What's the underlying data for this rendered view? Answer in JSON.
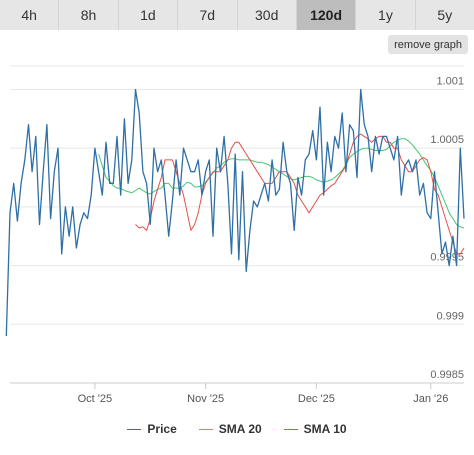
{
  "tabs": [
    {
      "label": "4h",
      "active": false
    },
    {
      "label": "8h",
      "active": false
    },
    {
      "label": "1d",
      "active": false
    },
    {
      "label": "7d",
      "active": false
    },
    {
      "label": "30d",
      "active": false
    },
    {
      "label": "120d",
      "active": true
    },
    {
      "label": "1y",
      "active": false
    },
    {
      "label": "5y",
      "active": false
    }
  ],
  "remove_graph_label": "remove graph",
  "chart_data": {
    "type": "line",
    "title": "",
    "xlabel": "",
    "ylabel": "",
    "x_range": [
      0,
      123
    ],
    "ylim": [
      0.9985,
      1.0012
    ],
    "y_ticks": [
      0.9985,
      0.999,
      0.9995,
      1.0,
      1.0005,
      1.001
    ],
    "y_tick_labels": [
      "0.9985",
      "0.999",
      "0.9995",
      "",
      "1.0005",
      "1.001"
    ],
    "x_ticks": [
      {
        "label": "Oct '25",
        "x": 23
      },
      {
        "label": "Nov '25",
        "x": 53
      },
      {
        "label": "Dec '25",
        "x": 83
      },
      {
        "label": "Jan '26",
        "x": 114
      }
    ],
    "grid": true,
    "legend": "bottom",
    "series": [
      {
        "name": "Price",
        "color": "#2f6fa6",
        "values": [
          0.9989,
          0.99995,
          1.0002,
          0.99988,
          1.0002,
          1.0004,
          1.0007,
          1.0003,
          1.0006,
          0.99985,
          1.0003,
          1.0007,
          0.9999,
          1.0003,
          1.0005,
          0.9996,
          1.0,
          0.99975,
          1.0,
          0.99965,
          0.99985,
          0.99995,
          0.9999,
          1.0001,
          1.0005,
          1.0003,
          1.0001,
          1.00055,
          1.0002,
          1.0002,
          1.0006,
          1.0001,
          1.00075,
          1.0002,
          1.0004,
          1.001,
          1.0008,
          1.0003,
          1.0002,
          0.99985,
          1.0005,
          1.0003,
          1.0004,
          1.0001,
          0.99975,
          1.00005,
          1.0004,
          1.0001,
          1.0005,
          1.0004,
          1.0003,
          1.0003,
          1.0004,
          1.0001,
          1.0003,
          1.0004,
          0.99975,
          1.0005,
          1.0003,
          1.0006,
          1.0002,
          0.9996,
          1.00045,
          0.99955,
          1.0003,
          0.99945,
          0.9998,
          1.00005,
          1.0,
          1.0001,
          1.0002,
          1.00005,
          1.0004,
          1.0001,
          1.00015,
          1.00055,
          1.0003,
          1.0002,
          0.9998,
          1.00025,
          1.0001,
          1.0004,
          1.00045,
          1.00065,
          1.0004,
          1.00085,
          1.0001,
          1.00055,
          1.0003,
          1.0006,
          1.0005,
          1.0008,
          1.0003,
          1.0007,
          1.00065,
          1.00025,
          1.001,
          1.0007,
          1.0006,
          1.0003,
          1.0006,
          1.00045,
          1.0006,
          1.0006,
          1.0005,
          1.0004,
          1.0006,
          1.0001,
          1.00035,
          1.0004,
          1.0003,
          1.0004,
          1.0001,
          1.0002,
          0.99995,
          0.9999,
          1.0003,
          0.99995,
          0.9996,
          0.9997,
          0.9995,
          0.99975,
          0.9995,
          1.0005,
          0.9999
        ]
      },
      {
        "name": "SMA 20",
        "color": "#42c774",
        "values": [
          1.00045,
          1.00035,
          1.00025,
          1.00022,
          1.00018,
          1.00016,
          1.00016,
          1.00014,
          1.00013,
          1.00012,
          1.00014,
          1.00016,
          1.00014,
          1.00012,
          1.00011,
          1.00013,
          1.00015,
          1.00016,
          1.0002,
          1.0002,
          1.00016,
          1.00016,
          1.00016,
          1.00018,
          1.00021,
          1.0002,
          1.00017,
          1.00017,
          1.00018,
          1.00021,
          1.00025,
          1.00029,
          1.00033,
          1.00035,
          1.00038,
          1.0004,
          1.00041,
          1.00041,
          1.0004,
          1.0004,
          1.0004,
          1.0004,
          1.00039,
          1.00038,
          1.00038,
          1.00037,
          1.00036,
          1.00034,
          1.00032,
          1.0003,
          1.00028,
          1.00026,
          1.00024,
          1.00023,
          1.00024,
          1.00025,
          1.00026,
          1.00026,
          1.00025,
          1.00023,
          1.00022,
          1.00021,
          1.00022,
          1.00023,
          1.00025,
          1.00028,
          1.00031,
          1.00036,
          1.00042,
          1.00045,
          1.00047,
          1.00049,
          1.0005,
          1.0005,
          1.00049,
          1.00048,
          1.00048,
          1.00048,
          1.00049,
          1.00052,
          1.00055,
          1.00057,
          1.00058,
          1.00058,
          1.00056,
          1.00053,
          1.00049,
          1.00045,
          1.0004,
          1.00035,
          1.00031,
          1.00025,
          1.00018,
          1.0001,
          1.00003,
          0.99995,
          0.9999,
          0.99985,
          0.99983,
          0.99982
        ]
      },
      {
        "name": "SMA 10",
        "color": "#e0504b",
        "values": [
          0.99985,
          0.99982,
          0.99983,
          0.9998,
          0.9999,
          1.00005,
          1.00015,
          1.00025,
          1.0004,
          1.0004,
          1.0004,
          1.0003,
          1.0002,
          1.0001,
          0.99995,
          0.9998,
          0.99985,
          0.99995,
          1.0001,
          1.0002,
          1.00025,
          1.0003,
          1.0003,
          1.0003,
          1.00035,
          1.0004,
          1.0005,
          1.00055,
          1.00055,
          1.0005,
          1.00045,
          1.0004,
          1.00035,
          1.0003,
          1.00025,
          1.0002,
          1.0002,
          1.0002,
          1.00025,
          1.0003,
          1.0003,
          1.0003,
          1.00025,
          1.0002,
          1.0001,
          1.00005,
          1.0,
          0.99995,
          1.0,
          1.00005,
          1.0001,
          1.00012,
          1.00015,
          1.00018,
          1.0002,
          1.00025,
          1.0003,
          1.00035,
          1.00045,
          1.00055,
          1.0006,
          1.00062,
          1.0006,
          1.00058,
          1.00055,
          1.00058,
          1.0006,
          1.0006,
          1.00055,
          1.00055,
          1.0005,
          1.0005,
          1.0004,
          1.00035,
          1.0003,
          1.0003,
          1.00035,
          1.0004,
          1.00042,
          1.0004,
          1.0003,
          1.00015,
          1.0001,
          1.0,
          0.9999,
          0.9998,
          0.9997,
          0.9996,
          0.9996,
          0.99965
        ]
      }
    ]
  }
}
